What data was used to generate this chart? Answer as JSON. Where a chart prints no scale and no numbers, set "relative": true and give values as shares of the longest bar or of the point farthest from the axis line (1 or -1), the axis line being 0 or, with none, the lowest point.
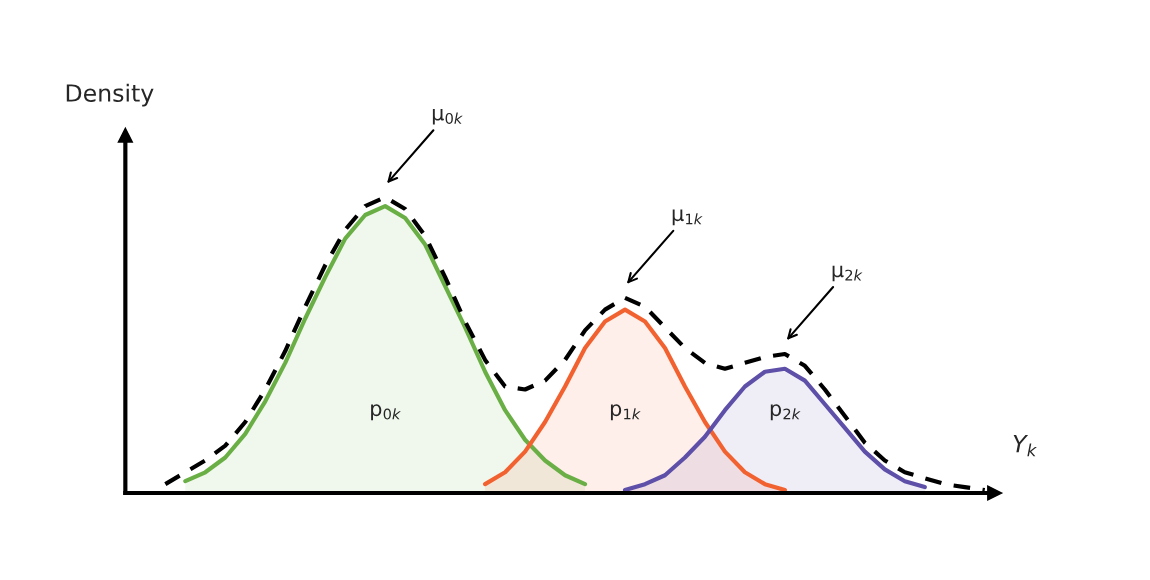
{
  "chart_data": {
    "type": "area",
    "relative": true,
    "ylabel": "Density",
    "xlabel": "Y$_{k}$",
    "marker": "none",
    "categories": [
      null,
      null,
      null,
      null,
      null,
      null,
      null,
      null,
      null,
      null,
      null,
      null,
      null,
      null,
      null,
      null,
      null,
      null,
      null,
      null,
      null,
      null,
      null,
      null,
      null,
      null,
      null,
      null,
      null,
      null,
      null,
      null,
      null,
      null,
      null,
      null,
      null,
      null,
      null,
      null,
      null,
      null
    ],
    "series": [
      {
        "color": "#6aaf45",
        "values": [
          null,
          0.04,
          0.07,
          0.12,
          0.2,
          0.31,
          0.44,
          0.59,
          0.73,
          0.86,
          0.94,
          0.97,
          0.93,
          0.84,
          0.7,
          0.56,
          0.41,
          0.28,
          0.18,
          0.11,
          0.06,
          0.03,
          null,
          null,
          null,
          null,
          null,
          null,
          null,
          null,
          null,
          null,
          null,
          null,
          null,
          null,
          null,
          null,
          null,
          null,
          null,
          null
        ]
      },
      {
        "color": "#f26230",
        "values": [
          null,
          null,
          null,
          null,
          null,
          null,
          null,
          null,
          null,
          null,
          null,
          null,
          null,
          null,
          null,
          null,
          0.03,
          0.07,
          0.14,
          0.24,
          0.36,
          0.49,
          0.58,
          0.62,
          0.58,
          0.49,
          0.36,
          0.24,
          0.14,
          0.07,
          0.03,
          0.01,
          null,
          null,
          null,
          null,
          null,
          null,
          null,
          null,
          null,
          null
        ]
      },
      {
        "color": "#5e4fa8",
        "values": [
          null,
          null,
          null,
          null,
          null,
          null,
          null,
          null,
          null,
          null,
          null,
          null,
          null,
          null,
          null,
          null,
          null,
          null,
          null,
          null,
          null,
          null,
          null,
          0.01,
          0.03,
          0.06,
          0.12,
          0.19,
          0.28,
          0.36,
          0.41,
          0.42,
          0.38,
          0.3,
          0.22,
          0.14,
          0.08,
          0.04,
          0.02,
          null,
          null,
          null
        ]
      },
      {
        "type": "line",
        "color": "#000000",
        "line_style": "dashed",
        "values": [
          0.03,
          0.07,
          0.11,
          0.16,
          0.24,
          0.35,
          0.48,
          0.63,
          0.77,
          0.89,
          0.97,
          1.0,
          0.96,
          0.87,
          0.73,
          0.58,
          0.45,
          0.36,
          0.35,
          0.38,
          0.45,
          0.55,
          0.62,
          0.66,
          0.63,
          0.56,
          0.49,
          0.44,
          0.42,
          0.44,
          0.46,
          0.47,
          0.43,
          0.35,
          0.26,
          0.17,
          0.11,
          0.07,
          0.05,
          0.03,
          0.02,
          0.01
        ]
      }
    ],
    "annotations": [
      "μ$_{0k}$",
      "μ$_{1k}$",
      "μ$_{2k}$",
      "p$_{0k}$",
      "p$_{1k}$",
      "p$_{2k}$"
    ]
  }
}
